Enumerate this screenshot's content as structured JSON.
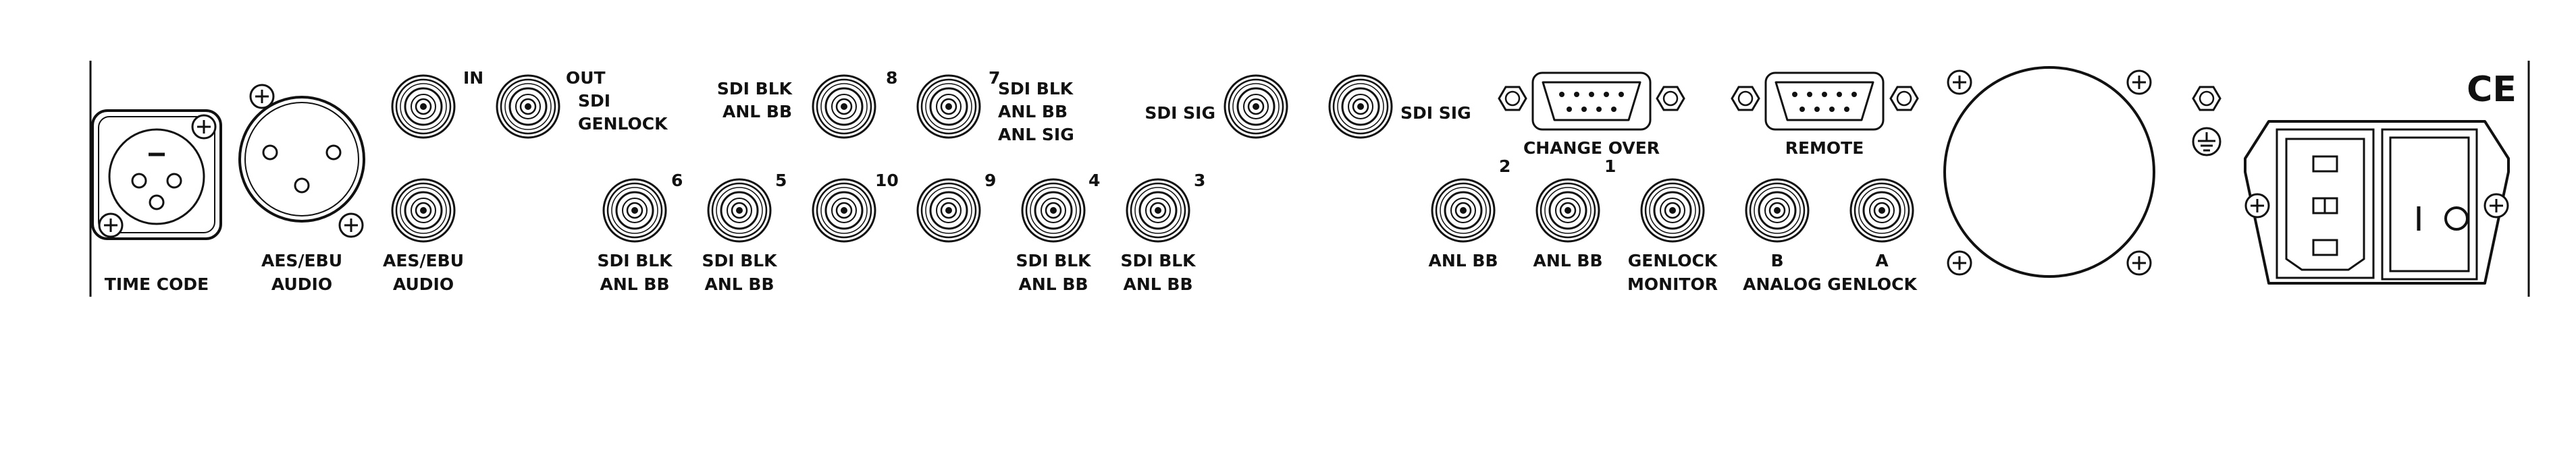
{
  "panel": {
    "mark": "CE",
    "labels": {
      "time_code": "TIME CODE",
      "aes_ebu_1": "AES/EBU",
      "audio_1": "AUDIO",
      "aes_ebu_2": "AES/EBU",
      "audio_2": "AUDIO",
      "in": "IN",
      "out": "OUT",
      "sdi": "SDI",
      "genlock": "GENLOCK",
      "sdi_blk_8": "SDI BLK",
      "anl_bb_8": "ANL BB",
      "num_8": "8",
      "num_7": "7",
      "sdi_blk_7": "SDI BLK",
      "anl_bb_7": "ANL BB",
      "anl_sig_7": "ANL SIG",
      "num_10": "10",
      "num_9": "9",
      "num_6": "6",
      "num_5": "5",
      "num_4": "4",
      "num_3": "3",
      "sdi_blk_6": "SDI BLK",
      "anl_bb_6": "ANL BB",
      "sdi_blk_5": "SDI BLK",
      "anl_bb_5": "ANL BB",
      "sdi_blk_4": "SDI BLK",
      "anl_bb_4": "ANL BB",
      "sdi_blk_3": "SDI BLK",
      "anl_bb_3": "ANL BB",
      "sdi_sig_left": "SDI SIG",
      "sdi_sig_right": "SDI SIG",
      "change_over": "CHANGE OVER",
      "remote": "REMOTE",
      "num_2": "2",
      "num_1": "1",
      "anl_bb_2": "ANL BB",
      "anl_bb_1": "ANL BB",
      "genlock_mon_1": "GENLOCK",
      "genlock_mon_2": "MONITOR",
      "b": "B",
      "a": "A",
      "analog_genlock": "ANALOG GENLOCK"
    }
  }
}
